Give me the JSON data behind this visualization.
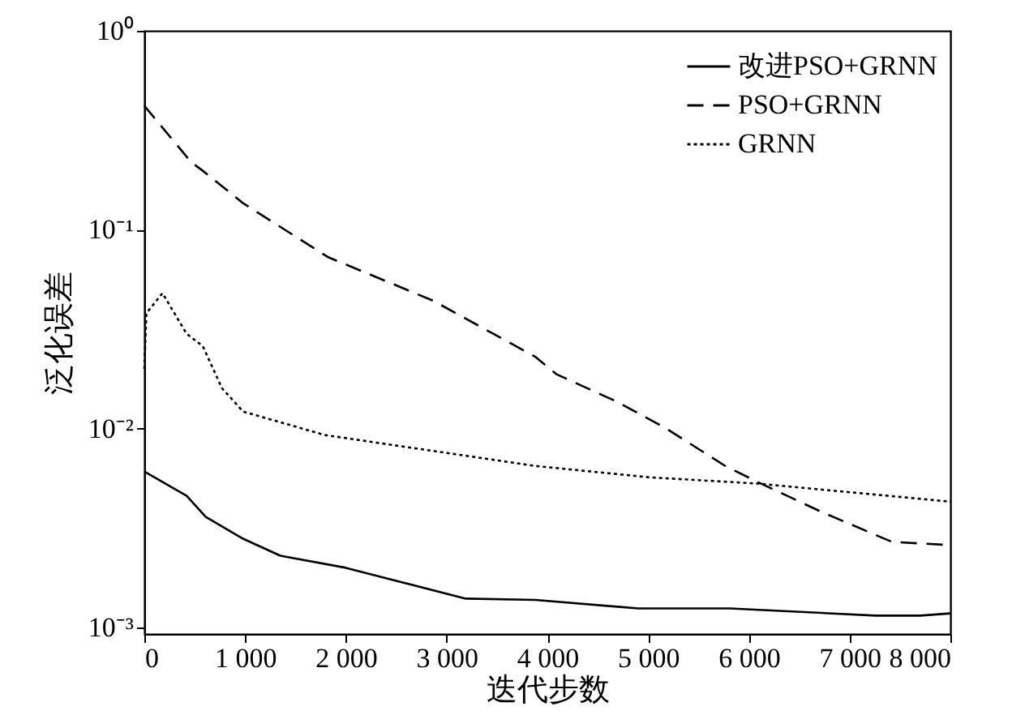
{
  "chart_data": {
    "type": "line",
    "xlabel": "迭代步数",
    "ylabel": "泛化误差",
    "log": "y",
    "grid": false,
    "legend": "top right",
    "marker": "none",
    "xlim": [
      0,
      8000
    ],
    "xticks": [
      0,
      {
        "value": 1000,
        "label": "1 000"
      },
      {
        "value": 2000,
        "label": "2 000"
      },
      {
        "value": 3000,
        "label": "3 000"
      },
      {
        "value": 4000,
        "label": "4 000"
      },
      {
        "value": 5000,
        "label": "5 000"
      },
      {
        "value": 6000,
        "label": "6 000"
      },
      {
        "value": 7000,
        "label": "7 000"
      },
      {
        "value": 8000,
        "label": "8 000"
      }
    ],
    "ylim": [
      0.00093,
      1
    ],
    "yticks": [
      {
        "value": 1,
        "label": "10⁰"
      },
      {
        "value": 0.1,
        "label": "10⁻¹"
      },
      {
        "value": 0.01,
        "label": "10⁻²"
      },
      {
        "value": 0.001,
        "label": "10⁻³"
      }
    ],
    "series": [
      {
        "name": "改进PSO+GRNN",
        "color": "#000000",
        "line_style": "solid",
        "x": [
          0,
          420,
          610,
          980,
          1350,
          2000,
          2540,
          3190,
          3880,
          4900,
          5810,
          7260,
          7700,
          8000
        ],
        "values": [
          0.0061,
          0.0046,
          0.0036,
          0.0028,
          0.0023,
          0.002,
          0.0017,
          0.0014,
          0.00138,
          0.00125,
          0.00125,
          0.00115,
          0.00115,
          0.00118
        ]
      },
      {
        "name": "PSO+GRNN",
        "color": "#000000",
        "line_style": "dashed",
        "x": [
          0,
          467,
          580,
          980,
          1820,
          2866,
          3880,
          4090,
          4686,
          5170,
          5765,
          6087,
          6730,
          7420,
          8000
        ],
        "values": [
          0.42,
          0.218,
          0.198,
          0.136,
          0.073,
          0.044,
          0.023,
          0.0188,
          0.0137,
          0.0101,
          0.0065,
          0.0054,
          0.0038,
          0.0027,
          0.0026
        ]
      },
      {
        "name": "GRNN",
        "color": "#000000",
        "line_style": "dotted",
        "x": [
          0,
          20,
          180,
          420,
          580,
          770,
          980,
          1790,
          3880,
          5010,
          6087,
          8000
        ],
        "values": [
          0.02,
          0.038,
          0.048,
          0.03,
          0.026,
          0.016,
          0.0122,
          0.0093,
          0.0065,
          0.0057,
          0.0053,
          0.0043
        ]
      }
    ]
  }
}
